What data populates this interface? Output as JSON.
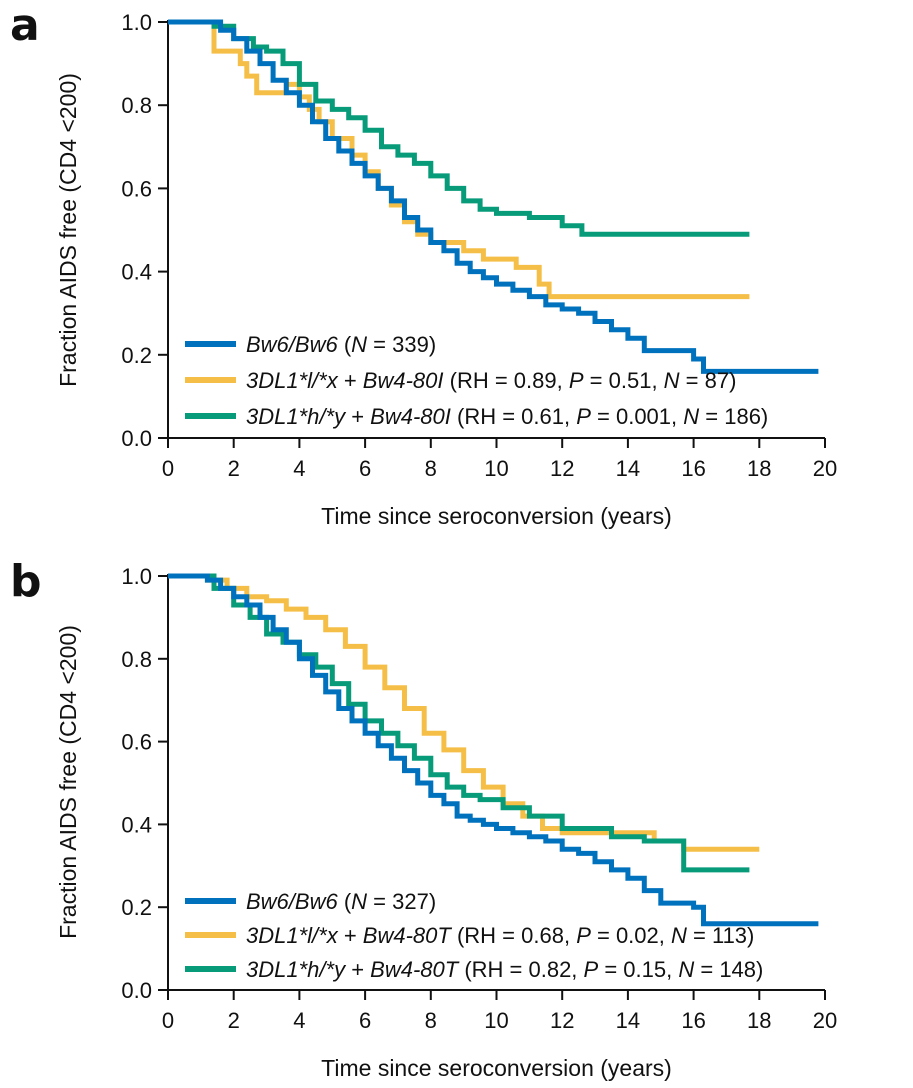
{
  "colors": {
    "blue": "#0072bd",
    "orange": "#f5bf47",
    "green": "#079b7a",
    "axis": "#111111"
  },
  "chart_data": [
    {
      "panel": "a",
      "type": "line",
      "xlabel": "Time since seroconversion (years)",
      "ylabel": "Fraction AIDS free (CD4 <200)",
      "xlim": [
        0,
        20
      ],
      "ylim": [
        0,
        1
      ],
      "xticks": [
        "0",
        "2",
        "4",
        "6",
        "8",
        "10",
        "12",
        "14",
        "16",
        "18",
        "20"
      ],
      "yticks": [
        "0.0",
        "0.2",
        "0.4",
        "0.6",
        "0.8",
        "1.0"
      ],
      "legend_position": "bottom-left",
      "series": [
        {
          "name": "Bw6/Bw6 (N = 339)",
          "legend": [
            {
              "t": "Bw6/Bw6",
              "i": true
            },
            {
              "t": " (",
              "i": false
            },
            {
              "t": "N",
              "i": true
            },
            {
              "t": " = 339)",
              "i": false
            }
          ],
          "color": "blue",
          "x": [
            0,
            1.2,
            1.6,
            2.0,
            2.4,
            2.8,
            3.2,
            3.6,
            4.0,
            4.4,
            4.8,
            5.2,
            5.6,
            6.0,
            6.4,
            6.8,
            7.2,
            7.6,
            8.0,
            8.4,
            8.8,
            9.2,
            9.6,
            10.0,
            10.5,
            11.0,
            11.5,
            12.0,
            12.5,
            13.0,
            13.5,
            14.0,
            14.5,
            15.0,
            15.5,
            16.0,
            16.3,
            17.0,
            19.8
          ],
          "y": [
            1.0,
            1.0,
            0.98,
            0.96,
            0.93,
            0.9,
            0.86,
            0.83,
            0.8,
            0.76,
            0.72,
            0.69,
            0.66,
            0.63,
            0.6,
            0.57,
            0.53,
            0.5,
            0.47,
            0.45,
            0.42,
            0.4,
            0.385,
            0.37,
            0.355,
            0.34,
            0.32,
            0.31,
            0.3,
            0.28,
            0.26,
            0.24,
            0.21,
            0.21,
            0.21,
            0.19,
            0.16,
            0.16,
            0.16
          ]
        },
        {
          "name": "3DL1*l/*x + Bw4-80I (RH = 0.89, P = 0.51, N = 87)",
          "legend": [
            {
              "t": "3DL1*l/*x",
              "i": true
            },
            {
              "t": " + ",
              "i": false
            },
            {
              "t": "Bw4-80I",
              "i": true
            },
            {
              "t": " (RH = 0.89, ",
              "i": false
            },
            {
              "t": "P",
              "i": true
            },
            {
              "t": " = 0.51, ",
              "i": false
            },
            {
              "t": "N",
              "i": true
            },
            {
              "t": " = 87)",
              "i": false
            }
          ],
          "color": "orange",
          "x": [
            0,
            1.0,
            1.4,
            2.2,
            2.4,
            2.7,
            3.3,
            3.6,
            4.0,
            4.3,
            4.6,
            5.0,
            5.6,
            6.0,
            6.4,
            6.8,
            7.2,
            7.6,
            8.0,
            9.0,
            9.6,
            10.6,
            11.3,
            11.6,
            17.7
          ],
          "y": [
            1.0,
            1.0,
            0.93,
            0.9,
            0.87,
            0.83,
            0.83,
            0.85,
            0.82,
            0.79,
            0.76,
            0.72,
            0.68,
            0.64,
            0.6,
            0.56,
            0.52,
            0.49,
            0.47,
            0.45,
            0.43,
            0.41,
            0.37,
            0.34,
            0.34
          ]
        },
        {
          "name": "3DL1*h/*y + Bw4-80I (RH = 0.61, P = 0.001, N = 186)",
          "legend": [
            {
              "t": "3DL1*h/*y",
              "i": true
            },
            {
              "t": " + ",
              "i": false
            },
            {
              "t": "Bw4-80I",
              "i": true
            },
            {
              "t": " (RH = 0.61, ",
              "i": false
            },
            {
              "t": "P",
              "i": true
            },
            {
              "t": " = 0.001, ",
              "i": false
            },
            {
              "t": "N",
              "i": true
            },
            {
              "t": " = 186)",
              "i": false
            }
          ],
          "color": "green",
          "x": [
            0,
            1.0,
            1.4,
            2.0,
            2.6,
            3.0,
            3.5,
            4.0,
            4.5,
            5.0,
            5.5,
            6.0,
            6.5,
            7.0,
            7.5,
            8.0,
            8.5,
            9.0,
            9.5,
            10.0,
            11.0,
            12.0,
            12.6,
            17.7
          ],
          "y": [
            1.0,
            1.0,
            0.99,
            0.96,
            0.94,
            0.93,
            0.9,
            0.85,
            0.81,
            0.79,
            0.77,
            0.74,
            0.7,
            0.68,
            0.66,
            0.63,
            0.6,
            0.57,
            0.55,
            0.54,
            0.53,
            0.51,
            0.49,
            0.49
          ]
        }
      ]
    },
    {
      "panel": "b",
      "type": "line",
      "xlabel": "Time since seroconversion (years)",
      "ylabel": "Fraction AIDS free (CD4 <200)",
      "xlim": [
        0,
        20
      ],
      "ylim": [
        0,
        1
      ],
      "xticks": [
        "0",
        "2",
        "4",
        "6",
        "8",
        "10",
        "12",
        "14",
        "16",
        "18",
        "20"
      ],
      "yticks": [
        "0.0",
        "0.2",
        "0.4",
        "0.6",
        "0.8",
        "1.0"
      ],
      "legend_position": "bottom-left",
      "series": [
        {
          "name": "Bw6/Bw6 (N = 327)",
          "legend": [
            {
              "t": "Bw6/Bw6",
              "i": true
            },
            {
              "t": " (",
              "i": false
            },
            {
              "t": "N",
              "i": true
            },
            {
              "t": " = 327)",
              "i": false
            }
          ],
          "color": "blue",
          "x": [
            0,
            0.8,
            1.2,
            1.6,
            2.0,
            2.4,
            2.8,
            3.2,
            3.6,
            4.0,
            4.4,
            4.8,
            5.2,
            5.6,
            6.0,
            6.4,
            6.8,
            7.2,
            7.6,
            8.0,
            8.4,
            8.8,
            9.2,
            9.6,
            10.0,
            10.5,
            11.0,
            11.5,
            12.0,
            12.5,
            13.0,
            13.5,
            14.0,
            14.5,
            15.0,
            15.5,
            16.0,
            16.3,
            17.0,
            19.8
          ],
          "y": [
            1.0,
            1.0,
            0.99,
            0.97,
            0.95,
            0.93,
            0.9,
            0.87,
            0.84,
            0.8,
            0.76,
            0.72,
            0.68,
            0.65,
            0.62,
            0.59,
            0.56,
            0.53,
            0.5,
            0.47,
            0.45,
            0.42,
            0.41,
            0.4,
            0.39,
            0.38,
            0.37,
            0.36,
            0.34,
            0.33,
            0.31,
            0.29,
            0.27,
            0.24,
            0.21,
            0.21,
            0.2,
            0.16,
            0.16,
            0.16
          ]
        },
        {
          "name": "3DL1*l/*x + Bw4-80T (RH = 0.68, P = 0.02, N = 113)",
          "legend": [
            {
              "t": "3DL1*l/*x",
              "i": true
            },
            {
              "t": " + ",
              "i": false
            },
            {
              "t": "Bw4-80T",
              "i": true
            },
            {
              "t": " (RH = 0.68, ",
              "i": false
            },
            {
              "t": "P",
              "i": true
            },
            {
              "t": " = 0.02, ",
              "i": false
            },
            {
              "t": "N",
              "i": true
            },
            {
              "t": " = 113)",
              "i": false
            }
          ],
          "color": "orange",
          "x": [
            0,
            0.6,
            1.2,
            1.8,
            2.4,
            3.0,
            3.6,
            4.2,
            4.8,
            5.4,
            6.0,
            6.6,
            7.2,
            7.8,
            8.4,
            9.0,
            9.6,
            10.2,
            10.8,
            11.4,
            12.0,
            14.8,
            15.7,
            18.0
          ],
          "y": [
            1.0,
            1.0,
            0.99,
            0.97,
            0.95,
            0.94,
            0.92,
            0.9,
            0.87,
            0.83,
            0.78,
            0.73,
            0.68,
            0.62,
            0.58,
            0.53,
            0.49,
            0.45,
            0.42,
            0.39,
            0.38,
            0.36,
            0.34,
            0.34
          ]
        },
        {
          "name": "3DL1*h/*y + Bw4-80T (RH = 0.82, P = 0.15, N = 148)",
          "legend": [
            {
              "t": "3DL1*h/*y",
              "i": true
            },
            {
              "t": " + ",
              "i": false
            },
            {
              "t": "Bw4-80T",
              "i": true
            },
            {
              "t": " (RH = 0.82, ",
              "i": false
            },
            {
              "t": "P",
              "i": true
            },
            {
              "t": " = 0.15, ",
              "i": false
            },
            {
              "t": "N",
              "i": true
            },
            {
              "t": " = 148)",
              "i": false
            }
          ],
          "color": "green",
          "x": [
            0,
            0.8,
            1.4,
            2.0,
            2.5,
            3.0,
            3.5,
            4.0,
            4.5,
            5.0,
            5.5,
            6.0,
            6.5,
            7.0,
            7.5,
            8.0,
            8.5,
            9.0,
            9.5,
            10.2,
            11.0,
            12.0,
            13.5,
            14.5,
            15.7,
            17.7
          ],
          "y": [
            1.0,
            1.0,
            0.97,
            0.93,
            0.9,
            0.86,
            0.84,
            0.81,
            0.78,
            0.74,
            0.69,
            0.65,
            0.62,
            0.59,
            0.56,
            0.52,
            0.49,
            0.47,
            0.46,
            0.44,
            0.42,
            0.39,
            0.37,
            0.36,
            0.29,
            0.29
          ]
        }
      ]
    }
  ]
}
